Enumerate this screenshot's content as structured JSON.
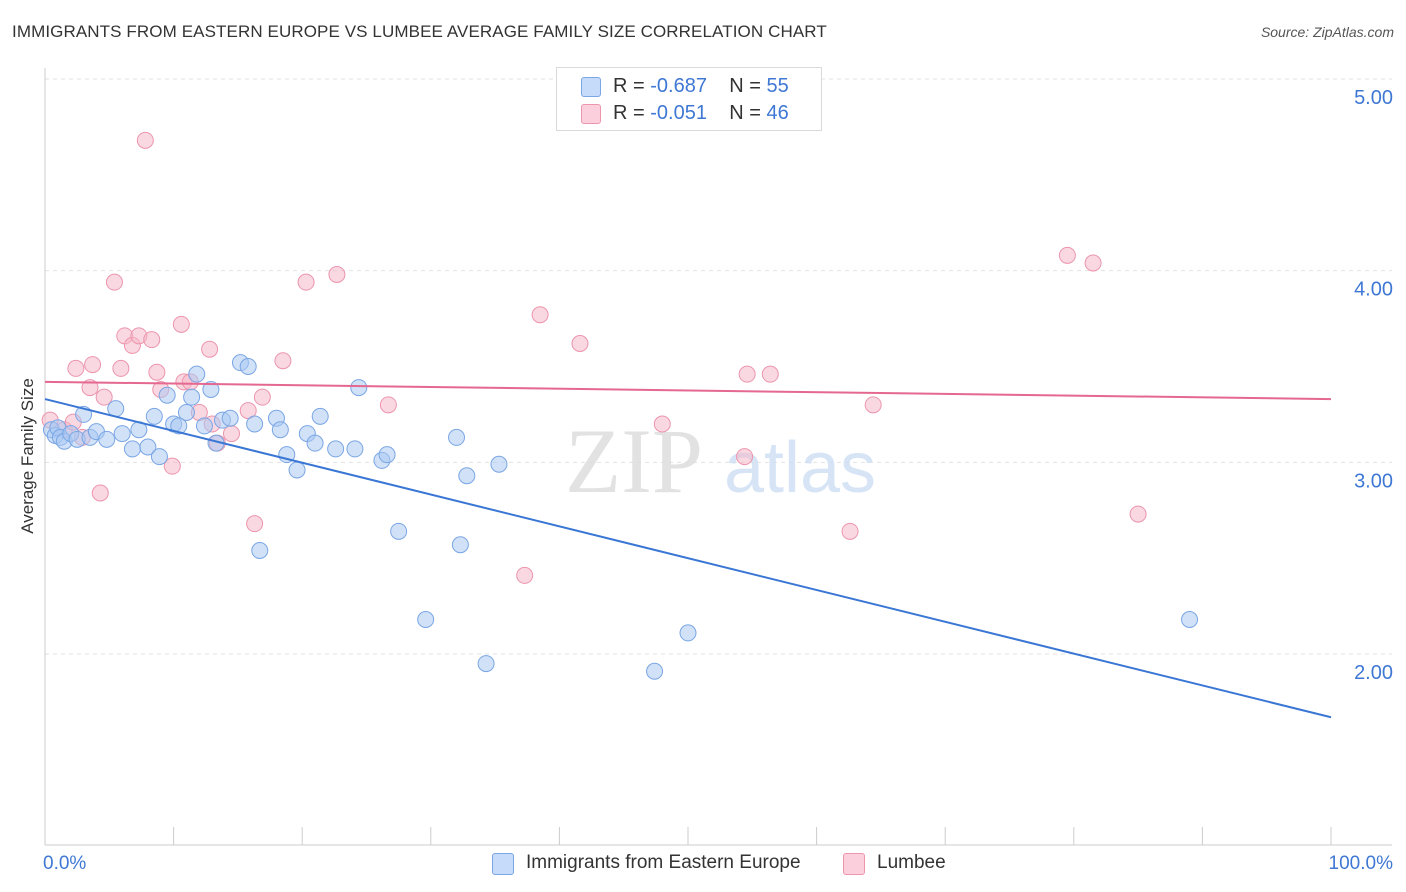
{
  "title": "IMMIGRANTS FROM EASTERN EUROPE VS LUMBEE AVERAGE FAMILY SIZE CORRELATION CHART",
  "source": "Source: ZipAtlas.com",
  "watermark": {
    "zip": "ZIP",
    "atlas": "atlas"
  },
  "legend": {
    "series1": {
      "r_label": "R = ",
      "r_value": "-0.687",
      "n_label": "N = ",
      "n_value": "55"
    },
    "series2": {
      "r_label": "R = ",
      "r_value": "-0.051",
      "n_label": "N = ",
      "n_value": "46"
    }
  },
  "colors": {
    "blue_fill": "#a9c8f3",
    "blue_stroke": "#7aa6e4",
    "blue_line": "#3a77d4",
    "pink_fill": "#f6b8c8",
    "pink_stroke": "#ec95ad",
    "pink_line": "#e46890",
    "tick_label": "#3f78d4",
    "grid": "#e2e2e2"
  },
  "chart_data": {
    "type": "scatter",
    "title": "IMMIGRANTS FROM EASTERN EUROPE VS LUMBEE AVERAGE FAMILY SIZE CORRELATION CHART",
    "xlabel": "",
    "ylabel": "Average Family Size",
    "xlim": [
      0,
      100
    ],
    "ylim": [
      1.0,
      5.15
    ],
    "x_tick_labels": {
      "left": "0.0%",
      "right": "100.0%"
    },
    "y_ticks": [
      {
        "value": 5.0,
        "label": "5.00"
      },
      {
        "value": 4.0,
        "label": "4.00"
      },
      {
        "value": 3.0,
        "label": "3.00"
      },
      {
        "value": 2.0,
        "label": "2.00"
      }
    ],
    "series": [
      {
        "name": "Immigrants from Eastern Europe",
        "color": "#a9c8f3",
        "trend": {
          "x": [
            0,
            100
          ],
          "y": [
            3.33,
            1.67
          ]
        },
        "points": [
          [
            0.5,
            3.17
          ],
          [
            0.8,
            3.14
          ],
          [
            1.0,
            3.18
          ],
          [
            1.2,
            3.13
          ],
          [
            1.5,
            3.11
          ],
          [
            2.0,
            3.15
          ],
          [
            2.5,
            3.12
          ],
          [
            3.0,
            3.25
          ],
          [
            3.5,
            3.13
          ],
          [
            4.0,
            3.16
          ],
          [
            4.8,
            3.12
          ],
          [
            5.5,
            3.28
          ],
          [
            6.0,
            3.15
          ],
          [
            6.8,
            3.07
          ],
          [
            7.3,
            3.17
          ],
          [
            8.0,
            3.08
          ],
          [
            8.5,
            3.24
          ],
          [
            8.9,
            3.03
          ],
          [
            9.5,
            3.35
          ],
          [
            10.0,
            3.2
          ],
          [
            10.4,
            3.19
          ],
          [
            11.0,
            3.26
          ],
          [
            11.4,
            3.34
          ],
          [
            11.8,
            3.46
          ],
          [
            12.4,
            3.19
          ],
          [
            12.9,
            3.38
          ],
          [
            13.3,
            3.1
          ],
          [
            13.8,
            3.22
          ],
          [
            14.4,
            3.23
          ],
          [
            15.2,
            3.52
          ],
          [
            15.8,
            3.5
          ],
          [
            16.3,
            3.2
          ],
          [
            16.7,
            2.54
          ],
          [
            18.0,
            3.23
          ],
          [
            18.3,
            3.17
          ],
          [
            18.8,
            3.04
          ],
          [
            19.6,
            2.96
          ],
          [
            20.4,
            3.15
          ],
          [
            21.0,
            3.1
          ],
          [
            21.4,
            3.24
          ],
          [
            22.6,
            3.07
          ],
          [
            24.4,
            3.39
          ],
          [
            24.1,
            3.07
          ],
          [
            26.2,
            3.01
          ],
          [
            26.6,
            3.04
          ],
          [
            27.5,
            2.64
          ],
          [
            29.6,
            2.18
          ],
          [
            32.0,
            3.13
          ],
          [
            32.3,
            2.57
          ],
          [
            32.8,
            2.93
          ],
          [
            34.3,
            1.95
          ],
          [
            35.3,
            2.99
          ],
          [
            47.4,
            1.91
          ],
          [
            50.0,
            2.11
          ],
          [
            89.0,
            2.18
          ]
        ]
      },
      {
        "name": "Lumbee",
        "color": "#f6b8c8",
        "trend": {
          "x": [
            0,
            100
          ],
          "y": [
            3.42,
            3.33
          ]
        },
        "points": [
          [
            0.4,
            3.22
          ],
          [
            1.5,
            3.17
          ],
          [
            2.2,
            3.21
          ],
          [
            2.4,
            3.49
          ],
          [
            2.9,
            3.13
          ],
          [
            3.5,
            3.39
          ],
          [
            3.7,
            3.51
          ],
          [
            4.3,
            2.84
          ],
          [
            4.6,
            3.34
          ],
          [
            5.4,
            3.94
          ],
          [
            5.9,
            3.49
          ],
          [
            6.2,
            3.66
          ],
          [
            6.8,
            3.61
          ],
          [
            7.3,
            3.66
          ],
          [
            8.3,
            3.64
          ],
          [
            8.7,
            3.47
          ],
          [
            9.0,
            3.38
          ],
          [
            9.9,
            2.98
          ],
          [
            10.6,
            3.72
          ],
          [
            10.8,
            3.42
          ],
          [
            11.3,
            3.42
          ],
          [
            12.0,
            3.26
          ],
          [
            12.8,
            3.59
          ],
          [
            13.4,
            3.1
          ],
          [
            14.5,
            3.15
          ],
          [
            15.8,
            3.27
          ],
          [
            16.3,
            2.68
          ],
          [
            16.9,
            3.34
          ],
          [
            18.5,
            3.53
          ],
          [
            20.3,
            3.94
          ],
          [
            22.7,
            3.98
          ],
          [
            26.7,
            3.3
          ],
          [
            37.3,
            2.41
          ],
          [
            38.5,
            3.77
          ],
          [
            41.6,
            3.62
          ],
          [
            48.0,
            3.2
          ],
          [
            54.4,
            3.03
          ],
          [
            54.6,
            3.46
          ],
          [
            56.4,
            3.46
          ],
          [
            62.6,
            2.64
          ],
          [
            64.4,
            3.3
          ],
          [
            79.5,
            4.08
          ],
          [
            81.5,
            4.04
          ],
          [
            85.0,
            2.73
          ],
          [
            7.8,
            4.68
          ],
          [
            13.0,
            3.2
          ]
        ]
      }
    ]
  },
  "bottom_legend": {
    "series1": "Immigrants from Eastern Europe",
    "series2": "Lumbee"
  }
}
